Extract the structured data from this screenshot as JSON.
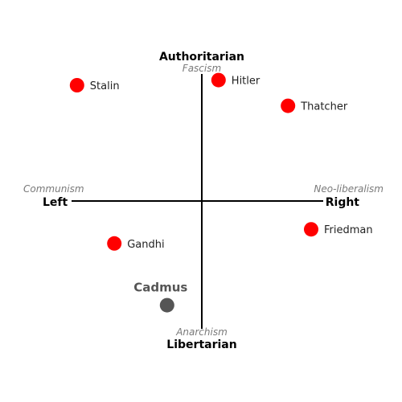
{
  "axes": {
    "top": "Authoritarian",
    "bottom": "Libertarian",
    "left": "Left",
    "right": "Right"
  },
  "ideologies": {
    "top": "Fascism",
    "bottom": "Anarchism",
    "left": "Communism",
    "right": "Neo-liberalism"
  },
  "colors": {
    "point": "#ff0000",
    "highlight": "#555555"
  },
  "chart_data": {
    "type": "scatter",
    "xlim": [
      -1,
      1
    ],
    "ylim": [
      -1,
      1
    ],
    "points": [
      {
        "label": "Stalin",
        "x": -0.97,
        "y": 0.9,
        "highlight": false
      },
      {
        "label": "Hitler",
        "x": 0.13,
        "y": 0.94,
        "highlight": false
      },
      {
        "label": "Thatcher",
        "x": 0.67,
        "y": 0.74,
        "highlight": false
      },
      {
        "label": "Friedman",
        "x": 0.85,
        "y": -0.22,
        "highlight": false
      },
      {
        "label": "Gandhi",
        "x": -0.68,
        "y": -0.33,
        "highlight": false
      },
      {
        "label": "Cadmus",
        "x": -0.27,
        "y": -0.81,
        "highlight": true
      }
    ]
  }
}
